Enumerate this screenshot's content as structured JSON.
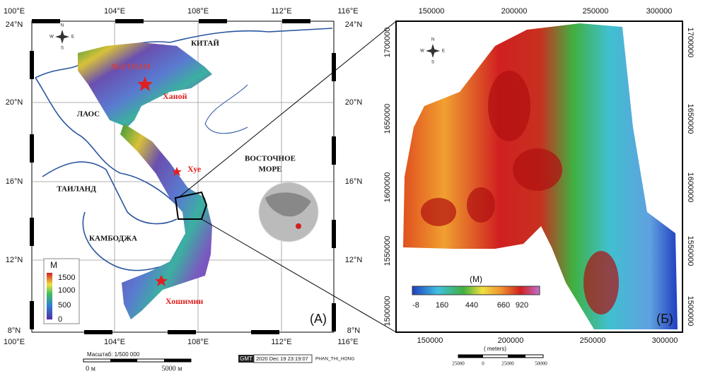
{
  "left_map": {
    "lon_labels": [
      "100°E",
      "104°E",
      "108°E",
      "112°E",
      "116°E"
    ],
    "lat_labels": [
      "24°N",
      "20°N",
      "16°N",
      "12°N",
      "8°N"
    ],
    "compass": {
      "n": "N",
      "s": "S",
      "w": "W",
      "e": "E"
    },
    "countries": {
      "china": "КИТАЙ",
      "vietnam": "ВЬЕТНАМ",
      "laos": "ЛАОС",
      "thailand": "ТАИЛАНД",
      "cambodia": "КАМБОДЖА"
    },
    "sea": [
      "ВОСТОЧНОЕ",
      "МОРЕ"
    ],
    "cities": [
      "Ханой",
      "Хуе",
      "Хошимин"
    ],
    "legend": {
      "unit": "M",
      "labels": [
        "1500",
        "1000",
        "500",
        "0"
      ]
    },
    "panel_label": "(A)",
    "scale": {
      "title": "Масштаб: 1/500 000",
      "start": "0 м",
      "end": "5000 м"
    },
    "stamp": {
      "logo": "GMT",
      "date": "2020 Dec 19 23:19:07",
      "user": "PHAN_THI_HONG"
    }
  },
  "right_map": {
    "x_ticks": [
      150000,
      200000,
      250000,
      300000
    ],
    "y_ticks": [
      1700000,
      1650000,
      1600000,
      1550000,
      1500000
    ],
    "compass": {
      "n": "N",
      "s": "S",
      "w": "W",
      "e": "E"
    },
    "legend": {
      "unit": "(M)",
      "labels": [
        -8,
        160,
        440,
        660,
        920
      ]
    },
    "panel_label": "(Б)",
    "scale": {
      "unit": "( meters)",
      "labels": [
        25000,
        0,
        25000,
        50000
      ]
    }
  }
}
